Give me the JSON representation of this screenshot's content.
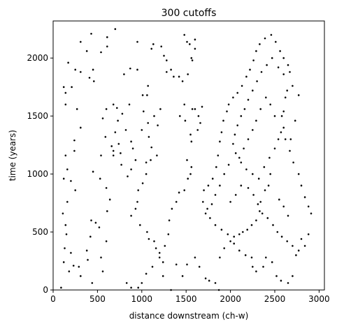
{
  "chart_data": {
    "type": "scatter",
    "title": "300 cutoffs",
    "xlabel": "distance downstream (ch-w)",
    "ylabel": "time (years)",
    "xlim": [
      0,
      3060
    ],
    "ylim": [
      0,
      2320
    ],
    "xticks": [
      0,
      500,
      1000,
      1500,
      2000,
      2500,
      3000
    ],
    "yticks": [
      0,
      500,
      1000,
      1500,
      2000
    ],
    "marker_color": "#000000",
    "grid": false,
    "legend": "none",
    "series": [
      {
        "points": [
          [
            430,
            2210
          ],
          [
            610,
            2180
          ],
          [
            700,
            2250
          ],
          [
            310,
            2140
          ],
          [
            380,
            2060
          ],
          [
            540,
            2050
          ],
          [
            610,
            2100
          ],
          [
            170,
            1960
          ],
          [
            250,
            1900
          ],
          [
            310,
            1880
          ],
          [
            410,
            1830
          ],
          [
            460,
            1800
          ],
          [
            450,
            1900
          ],
          [
            210,
            1750
          ],
          [
            120,
            1750
          ],
          [
            140,
            1700
          ],
          [
            140,
            1600
          ],
          [
            270,
            1560
          ],
          [
            310,
            1400
          ],
          [
            240,
            1290
          ],
          [
            240,
            1200
          ],
          [
            140,
            1160
          ],
          [
            160,
            1040
          ],
          [
            120,
            960
          ],
          [
            200,
            940
          ],
          [
            250,
            860
          ],
          [
            160,
            760
          ],
          [
            110,
            660
          ],
          [
            140,
            560
          ],
          [
            150,
            480
          ],
          [
            130,
            360
          ],
          [
            200,
            320
          ],
          [
            120,
            240
          ],
          [
            180,
            160
          ],
          [
            90,
            20
          ],
          [
            230,
            210
          ],
          [
            290,
            200
          ],
          [
            310,
            120
          ],
          [
            440,
            60
          ],
          [
            380,
            340
          ],
          [
            390,
            260
          ],
          [
            420,
            460
          ],
          [
            430,
            600
          ],
          [
            480,
            580
          ],
          [
            520,
            540
          ],
          [
            600,
            420
          ],
          [
            540,
            280
          ],
          [
            560,
            160
          ],
          [
            450,
            1020
          ],
          [
            530,
            960
          ],
          [
            540,
            1160
          ],
          [
            600,
            880
          ],
          [
            640,
            780
          ],
          [
            610,
            680
          ],
          [
            590,
            1320
          ],
          [
            560,
            1480
          ],
          [
            600,
            1560
          ],
          [
            680,
            1600
          ],
          [
            720,
            1570
          ],
          [
            660,
            1240
          ],
          [
            680,
            1200
          ],
          [
            680,
            1160
          ],
          [
            800,
            1860
          ],
          [
            870,
            1910
          ],
          [
            950,
            1900
          ],
          [
            950,
            2140
          ],
          [
            1070,
            1760
          ],
          [
            1010,
            1680
          ],
          [
            1060,
            1680
          ],
          [
            1020,
            1540
          ],
          [
            1000,
            1380
          ],
          [
            1070,
            1440
          ],
          [
            1080,
            1320
          ],
          [
            1110,
            1230
          ],
          [
            1170,
            1160
          ],
          [
            1180,
            1420
          ],
          [
            1140,
            1500
          ],
          [
            1210,
            1560
          ],
          [
            1100,
            1120
          ],
          [
            1050,
            1100
          ],
          [
            1050,
            1000
          ],
          [
            1010,
            920
          ],
          [
            960,
            860
          ],
          [
            950,
            760
          ],
          [
            930,
            700
          ],
          [
            880,
            640
          ],
          [
            980,
            560
          ],
          [
            1060,
            500
          ],
          [
            1080,
            440
          ],
          [
            1140,
            420
          ],
          [
            1160,
            360
          ],
          [
            1200,
            280
          ],
          [
            1240,
            240
          ],
          [
            1120,
            200
          ],
          [
            1050,
            140
          ],
          [
            1000,
            60
          ],
          [
            960,
            20
          ],
          [
            880,
            20
          ],
          [
            830,
            60
          ],
          [
            1110,
            2080
          ],
          [
            1130,
            2120
          ],
          [
            1220,
            2100
          ],
          [
            1250,
            2020
          ],
          [
            1280,
            1980
          ],
          [
            1280,
            1880
          ],
          [
            1330,
            1900
          ],
          [
            1360,
            1840
          ],
          [
            1420,
            1840
          ],
          [
            1460,
            1800
          ],
          [
            1520,
            1860
          ],
          [
            1560,
            2000
          ],
          [
            1600,
            2080
          ],
          [
            1540,
            2120
          ],
          [
            1510,
            2140
          ],
          [
            1480,
            2200
          ],
          [
            1600,
            2160
          ],
          [
            1570,
            1980
          ],
          [
            1480,
            1600
          ],
          [
            1430,
            1500
          ],
          [
            1490,
            1460
          ],
          [
            1570,
            1560
          ],
          [
            1600,
            1560
          ],
          [
            1640,
            1500
          ],
          [
            1680,
            1580
          ],
          [
            1660,
            1440
          ],
          [
            1630,
            1380
          ],
          [
            1550,
            1340
          ],
          [
            1560,
            1280
          ],
          [
            1510,
            1120
          ],
          [
            1560,
            1060
          ],
          [
            1550,
            1000
          ],
          [
            1520,
            960
          ],
          [
            1480,
            860
          ],
          [
            1420,
            840
          ],
          [
            1390,
            760
          ],
          [
            1340,
            700
          ],
          [
            1310,
            600
          ],
          [
            1300,
            480
          ],
          [
            1260,
            380
          ],
          [
            1200,
            320
          ],
          [
            1240,
            120
          ],
          [
            1330,
            0
          ],
          [
            1390,
            220
          ],
          [
            1460,
            120
          ],
          [
            1510,
            220
          ],
          [
            1600,
            280
          ],
          [
            1650,
            200
          ],
          [
            1720,
            100
          ],
          [
            1760,
            80
          ],
          [
            1830,
            60
          ],
          [
            1870,
            0
          ],
          [
            1880,
            280
          ],
          [
            1930,
            360
          ],
          [
            2000,
            420
          ],
          [
            2040,
            400
          ],
          [
            2100,
            340
          ],
          [
            2170,
            300
          ],
          [
            2240,
            280
          ],
          [
            2250,
            200
          ],
          [
            2290,
            160
          ],
          [
            2370,
            200
          ],
          [
            2400,
            280
          ],
          [
            2470,
            240
          ],
          [
            2520,
            120
          ],
          [
            2570,
            80
          ],
          [
            2650,
            60
          ],
          [
            2700,
            120
          ],
          [
            2770,
            340
          ],
          [
            2800,
            440
          ],
          [
            2840,
            380
          ],
          [
            2880,
            480
          ],
          [
            2910,
            660
          ],
          [
            2880,
            720
          ],
          [
            2840,
            800
          ],
          [
            2800,
            900
          ],
          [
            2770,
            1000
          ],
          [
            2710,
            1100
          ],
          [
            2670,
            1200
          ],
          [
            2620,
            1300
          ],
          [
            2600,
            1400
          ],
          [
            2580,
            1500
          ],
          [
            2600,
            1540
          ],
          [
            2620,
            1660
          ],
          [
            2640,
            1720
          ],
          [
            2700,
            1760
          ],
          [
            2770,
            1680
          ],
          [
            2730,
            1460
          ],
          [
            2680,
            1300
          ],
          [
            2450,
            1000
          ],
          [
            2430,
            900
          ],
          [
            2390,
            860
          ],
          [
            2340,
            760
          ],
          [
            2330,
            680
          ],
          [
            2290,
            600
          ],
          [
            2240,
            560
          ],
          [
            2190,
            520
          ],
          [
            2140,
            500
          ],
          [
            2100,
            480
          ],
          [
            2040,
            460
          ],
          [
            1970,
            480
          ],
          [
            1900,
            520
          ],
          [
            1830,
            560
          ],
          [
            1770,
            620
          ],
          [
            1720,
            660
          ],
          [
            1690,
            760
          ],
          [
            1700,
            860
          ],
          [
            1750,
            900
          ],
          [
            1800,
            960
          ],
          [
            1840,
            1060
          ],
          [
            1860,
            1160
          ],
          [
            1880,
            1280
          ],
          [
            1900,
            1360
          ],
          [
            1920,
            1460
          ],
          [
            1960,
            1540
          ],
          [
            1980,
            1600
          ],
          [
            2030,
            1660
          ],
          [
            2080,
            1700
          ],
          [
            2130,
            1760
          ],
          [
            2180,
            1840
          ],
          [
            2220,
            1900
          ],
          [
            2260,
            1980
          ],
          [
            2290,
            2060
          ],
          [
            2330,
            2120
          ],
          [
            2390,
            2170
          ],
          [
            2460,
            2200
          ],
          [
            2510,
            2140
          ],
          [
            2560,
            2060
          ],
          [
            2600,
            2000
          ],
          [
            2650,
            1940
          ],
          [
            2670,
            1880
          ],
          [
            2600,
            1860
          ],
          [
            2540,
            1920
          ],
          [
            2470,
            2000
          ],
          [
            2410,
            1940
          ],
          [
            2350,
            1880
          ],
          [
            2300,
            1800
          ],
          [
            2250,
            1720
          ],
          [
            2200,
            1640
          ],
          [
            2160,
            1560
          ],
          [
            2120,
            1500
          ],
          [
            2080,
            1420
          ],
          [
            2050,
            1340
          ],
          [
            2030,
            1260
          ],
          [
            2060,
            1180
          ],
          [
            2120,
            1100
          ],
          [
            2180,
            1040
          ],
          [
            2250,
            1000
          ],
          [
            2320,
            960
          ],
          [
            2380,
            1060
          ],
          [
            2440,
            1140
          ],
          [
            2500,
            1220
          ],
          [
            2540,
            1300
          ],
          [
            2570,
            1360
          ],
          [
            2500,
            1500
          ],
          [
            2450,
            1600
          ],
          [
            2400,
            1660
          ],
          [
            2340,
            1560
          ],
          [
            2290,
            1460
          ],
          [
            2250,
            1380
          ],
          [
            2200,
            1300
          ],
          [
            2150,
            1220
          ],
          [
            2100,
            1140
          ],
          [
            1980,
            1080
          ],
          [
            1930,
            1000
          ],
          [
            1880,
            900
          ],
          [
            1830,
            820
          ],
          [
            1790,
            740
          ],
          [
            1740,
            700
          ],
          [
            2000,
            760
          ],
          [
            2060,
            820
          ],
          [
            2120,
            900
          ],
          [
            2200,
            880
          ],
          [
            2260,
            820
          ],
          [
            2310,
            740
          ],
          [
            2360,
            660
          ],
          [
            2420,
            620
          ],
          [
            2480,
            560
          ],
          [
            2530,
            500
          ],
          [
            2580,
            460
          ],
          [
            2640,
            420
          ],
          [
            2700,
            380
          ],
          [
            2740,
            300
          ],
          [
            2650,
            640
          ],
          [
            2600,
            720
          ],
          [
            2550,
            780
          ],
          [
            820,
            1380
          ],
          [
            880,
            1280
          ],
          [
            900,
            1220
          ],
          [
            930,
            1120
          ],
          [
            880,
            1040
          ],
          [
            840,
            980
          ],
          [
            770,
            1080
          ],
          [
            760,
            1180
          ],
          [
            740,
            1260
          ],
          [
            700,
            1360
          ],
          [
            730,
            1460
          ],
          [
            780,
            1520
          ],
          [
            860,
            1600
          ]
        ]
      }
    ]
  }
}
